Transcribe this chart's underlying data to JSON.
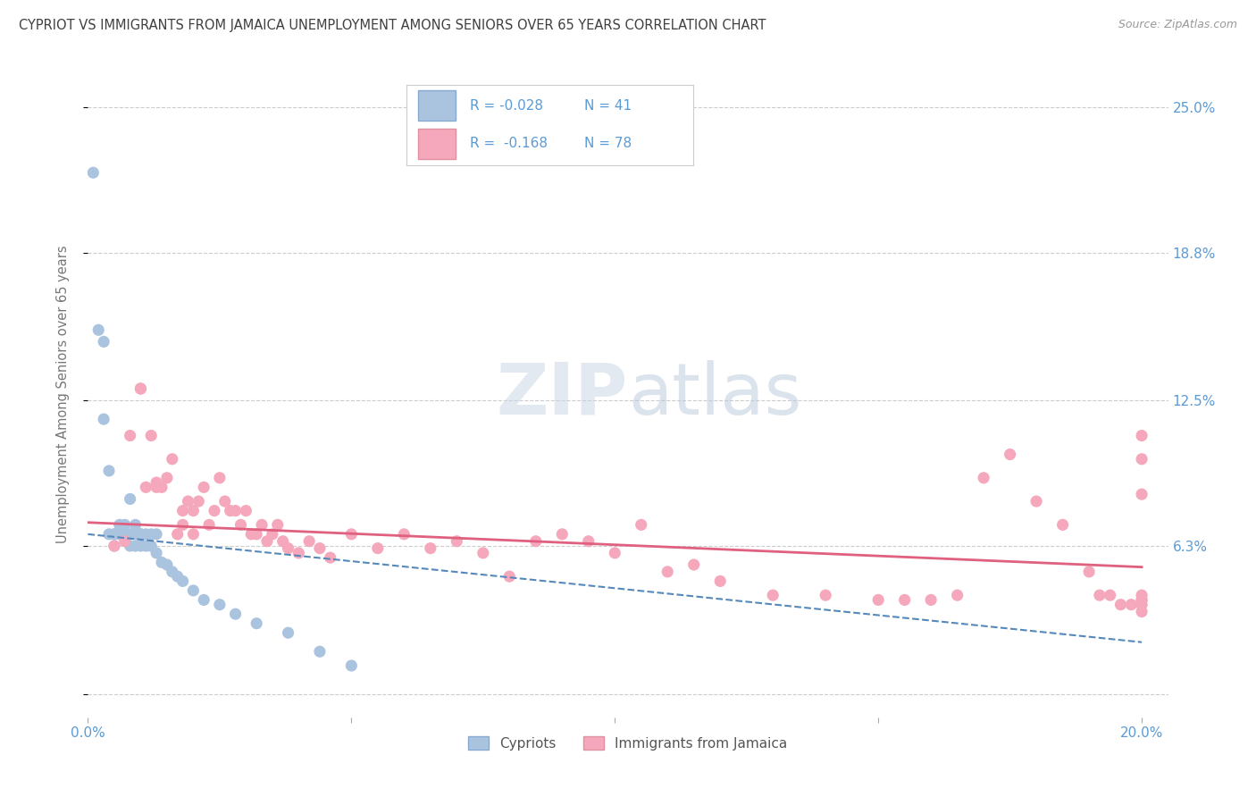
{
  "title": "CYPRIOT VS IMMIGRANTS FROM JAMAICA UNEMPLOYMENT AMONG SENIORS OVER 65 YEARS CORRELATION CHART",
  "source": "Source: ZipAtlas.com",
  "ylabel": "Unemployment Among Seniors over 65 years",
  "xlim": [
    0.0,
    0.205
  ],
  "ylim": [
    -0.01,
    0.265
  ],
  "ytick_vals": [
    0.0,
    0.063,
    0.125,
    0.188,
    0.25
  ],
  "ytick_labels": [
    "",
    "6.3%",
    "12.5%",
    "18.8%",
    "25.0%"
  ],
  "xtick_vals": [
    0.0,
    0.05,
    0.1,
    0.15,
    0.2
  ],
  "xtick_labels": [
    "0.0%",
    "",
    "",
    "",
    "20.0%"
  ],
  "legend_label1": "Cypriots",
  "legend_label2": "Immigrants from Jamaica",
  "R1": -0.028,
  "N1": 41,
  "R2": -0.168,
  "N2": 78,
  "color_blue": "#aac4df",
  "color_pink": "#f5a8bb",
  "color_blue_line": "#5588bb",
  "color_pink_line": "#e06080",
  "color_tick_label": "#5b9bd5",
  "color_title": "#404040",
  "color_source": "#999999",
  "color_ylabel": "#777777",
  "background": "#ffffff",
  "blue_line_x0": 0.0,
  "blue_line_y0": 0.068,
  "blue_line_x1": 0.2,
  "blue_line_y1": 0.022,
  "pink_line_x0": 0.0,
  "pink_line_y0": 0.073,
  "pink_line_x1": 0.2,
  "pink_line_y1": 0.054,
  "blue_x": [
    0.001,
    0.002,
    0.003,
    0.003,
    0.004,
    0.004,
    0.005,
    0.005,
    0.005,
    0.006,
    0.006,
    0.007,
    0.007,
    0.008,
    0.008,
    0.008,
    0.009,
    0.009,
    0.009,
    0.01,
    0.01,
    0.01,
    0.011,
    0.011,
    0.012,
    0.012,
    0.013,
    0.013,
    0.014,
    0.015,
    0.016,
    0.017,
    0.018,
    0.02,
    0.022,
    0.025,
    0.028,
    0.032,
    0.038,
    0.044,
    0.05
  ],
  "blue_y": [
    0.222,
    0.155,
    0.15,
    0.117,
    0.095,
    0.068,
    0.068,
    0.068,
    0.063,
    0.068,
    0.072,
    0.068,
    0.072,
    0.083,
    0.068,
    0.063,
    0.068,
    0.072,
    0.063,
    0.068,
    0.068,
    0.063,
    0.068,
    0.063,
    0.068,
    0.063,
    0.068,
    0.06,
    0.056,
    0.055,
    0.052,
    0.05,
    0.048,
    0.044,
    0.04,
    0.038,
    0.034,
    0.03,
    0.026,
    0.018,
    0.012
  ],
  "pink_x": [
    0.005,
    0.007,
    0.008,
    0.01,
    0.01,
    0.011,
    0.012,
    0.013,
    0.013,
    0.014,
    0.015,
    0.016,
    0.017,
    0.018,
    0.018,
    0.019,
    0.02,
    0.02,
    0.021,
    0.022,
    0.023,
    0.024,
    0.025,
    0.026,
    0.027,
    0.028,
    0.029,
    0.03,
    0.031,
    0.032,
    0.033,
    0.034,
    0.035,
    0.036,
    0.037,
    0.038,
    0.04,
    0.042,
    0.044,
    0.046,
    0.05,
    0.055,
    0.06,
    0.065,
    0.07,
    0.075,
    0.08,
    0.085,
    0.09,
    0.095,
    0.1,
    0.105,
    0.11,
    0.115,
    0.12,
    0.13,
    0.14,
    0.15,
    0.155,
    0.16,
    0.165,
    0.17,
    0.175,
    0.18,
    0.185,
    0.19,
    0.192,
    0.194,
    0.196,
    0.198,
    0.2,
    0.2,
    0.2,
    0.2,
    0.2,
    0.2,
    0.2,
    0.2
  ],
  "pink_y": [
    0.063,
    0.065,
    0.11,
    0.13,
    0.13,
    0.088,
    0.11,
    0.088,
    0.09,
    0.088,
    0.092,
    0.1,
    0.068,
    0.072,
    0.078,
    0.082,
    0.068,
    0.078,
    0.082,
    0.088,
    0.072,
    0.078,
    0.092,
    0.082,
    0.078,
    0.078,
    0.072,
    0.078,
    0.068,
    0.068,
    0.072,
    0.065,
    0.068,
    0.072,
    0.065,
    0.062,
    0.06,
    0.065,
    0.062,
    0.058,
    0.068,
    0.062,
    0.068,
    0.062,
    0.065,
    0.06,
    0.05,
    0.065,
    0.068,
    0.065,
    0.06,
    0.072,
    0.052,
    0.055,
    0.048,
    0.042,
    0.042,
    0.04,
    0.04,
    0.04,
    0.042,
    0.092,
    0.102,
    0.082,
    0.072,
    0.052,
    0.042,
    0.042,
    0.038,
    0.038,
    0.11,
    0.1,
    0.085,
    0.042,
    0.038,
    0.035,
    0.04,
    0.04
  ]
}
